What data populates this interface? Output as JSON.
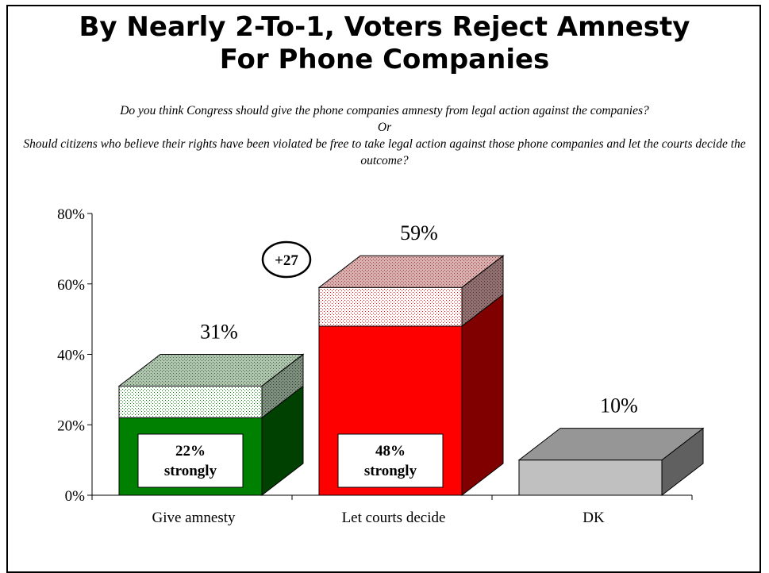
{
  "title_line1": "By Nearly 2-To-1, Voters Reject Amnesty",
  "title_line2": "For Phone Companies",
  "question_line1": "Do you think Congress should give the phone companies amnesty from legal action against the companies?",
  "question_or": "Or",
  "question_line2": "Should citizens who believe their rights have been violated be free to take legal action against those phone companies and let the courts decide the outcome?",
  "margin_badge": "+27",
  "chart_data": {
    "type": "bar",
    "stacked": true,
    "three_d": true,
    "categories": [
      "Give amnesty",
      "Let courts decide",
      "DK"
    ],
    "values": [
      31,
      59,
      10
    ],
    "strongly": [
      22,
      48,
      null
    ],
    "value_labels": [
      "31%",
      "59%",
      "10%"
    ],
    "strongly_labels": [
      "22%",
      "48%",
      ""
    ],
    "strongly_word": "strongly",
    "ylim": [
      0,
      80
    ],
    "yticks": [
      0,
      20,
      40,
      60,
      80
    ],
    "ytick_labels": [
      "0%",
      "20%",
      "40%",
      "60%",
      "80%"
    ],
    "colors": {
      "amnesty_front": "#008000",
      "amnesty_side": "#004000",
      "amnesty_top": "#a9c3a9",
      "courts_front": "#ff0000",
      "courts_side": "#800000",
      "courts_top": "#d9a0a0",
      "dk_front": "#c0c0c0",
      "dk_side": "#606060",
      "dk_top": "#969696"
    }
  }
}
